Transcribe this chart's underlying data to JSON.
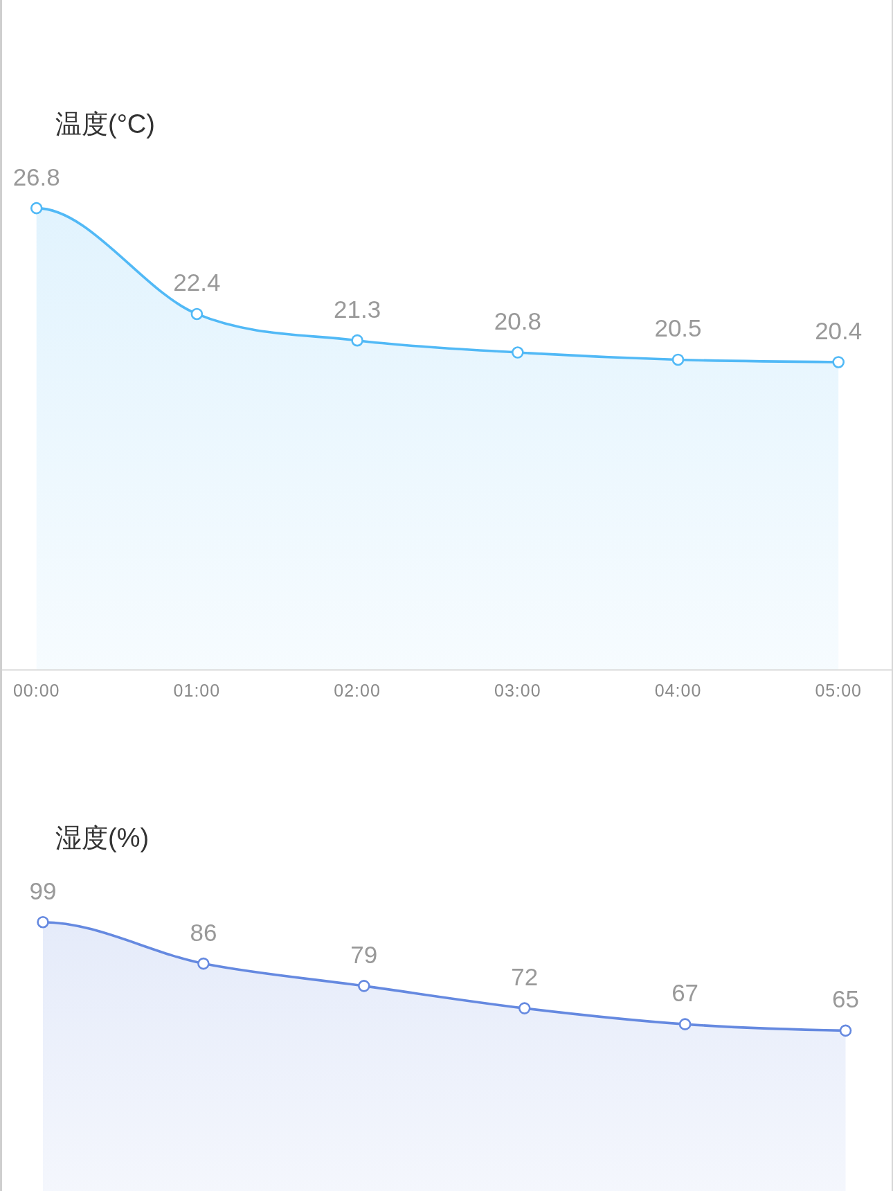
{
  "chart_data": [
    {
      "type": "area",
      "title": "温度(°C)",
      "categories": [
        "00:00",
        "01:00",
        "02:00",
        "03:00",
        "04:00",
        "05:00"
      ],
      "values": [
        26.8,
        22.4,
        21.3,
        20.8,
        20.5,
        20.4
      ],
      "color": "#51b9f6",
      "marker": "circle",
      "data_labels": true,
      "tick_labels": "x"
    },
    {
      "type": "area",
      "title": "湿度(%)",
      "categories": [
        null,
        null,
        null,
        null,
        null,
        null
      ],
      "values": [
        99,
        86,
        79,
        72,
        67,
        65
      ],
      "color": "#6589e0",
      "marker": "circle",
      "data_labels": true,
      "tick_labels": false
    }
  ]
}
